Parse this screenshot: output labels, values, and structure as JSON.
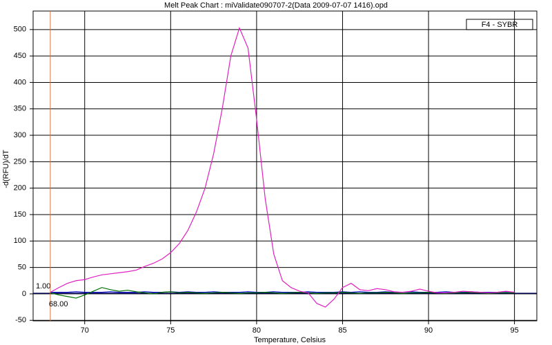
{
  "chart_data": {
    "type": "line",
    "title": "Melt Peak Chart : miValidate090707-2(Data 2009-07-07 1416).opd",
    "xlabel": "Temperature, Celsius",
    "ylabel": "-d(RFU)/dT",
    "x": [
      68,
      68.5,
      69,
      69.5,
      70,
      70.5,
      71,
      71.5,
      72,
      72.5,
      73,
      73.5,
      74,
      74.5,
      75,
      75.5,
      76,
      76.5,
      77,
      77.5,
      78,
      78.5,
      79,
      79.5,
      80,
      80.5,
      81,
      81.5,
      82,
      82.5,
      83,
      83.5,
      84,
      84.5,
      85,
      85.5,
      86,
      86.5,
      87,
      87.5,
      88,
      88.5,
      89,
      89.5,
      90,
      90.5,
      91,
      91.5,
      92,
      92.5,
      93,
      93.5,
      94,
      94.5,
      95
    ],
    "series": [
      {
        "name": "F4 - SYBR",
        "color": "#e020c0",
        "values": [
          3,
          12,
          20,
          25,
          27,
          32,
          36,
          38,
          40,
          42,
          45,
          52,
          58,
          66,
          78,
          95,
          120,
          155,
          200,
          265,
          350,
          450,
          503,
          465,
          330,
          180,
          75,
          25,
          12,
          5,
          2,
          -18,
          -25,
          -10,
          12,
          20,
          8,
          6,
          10,
          8,
          4,
          3,
          5,
          9,
          5,
          2,
          2,
          3,
          5,
          4,
          3,
          2,
          3,
          5,
          3
        ]
      },
      {
        "color": "#007000",
        "values": [
          2,
          -2,
          -5,
          -8,
          -2,
          5,
          12,
          8,
          5,
          7,
          4,
          2,
          0,
          3,
          4,
          2,
          3,
          2,
          1,
          2,
          3,
          2,
          1,
          2,
          2,
          3,
          2,
          1,
          2,
          3,
          2,
          1,
          2,
          2,
          3,
          2,
          1,
          2,
          2,
          3,
          2,
          1,
          2,
          2,
          3,
          2,
          1,
          2,
          2,
          3,
          2,
          1,
          2,
          2,
          2
        ]
      },
      {
        "color": "#0000c0",
        "values": [
          3,
          3,
          3,
          4,
          3,
          3,
          3,
          4,
          3,
          3,
          3,
          4,
          3,
          3,
          4,
          3,
          4,
          3,
          3,
          4,
          3,
          3,
          3,
          4,
          3,
          3,
          4,
          3,
          3,
          3,
          4,
          3,
          3,
          3,
          4,
          3,
          4,
          3,
          3,
          4,
          3,
          3,
          4,
          3,
          3,
          3,
          4,
          3,
          3,
          4,
          3,
          3,
          3,
          4,
          3
        ]
      }
    ],
    "xlim": [
      67,
      96.3
    ],
    "xticks": [
      70,
      75,
      80,
      85,
      90,
      95
    ],
    "ylim": [
      -51,
      535
    ],
    "yticks": [
      -50,
      0,
      50,
      100,
      150,
      200,
      250,
      300,
      350,
      400,
      450,
      500
    ],
    "grid": true,
    "threshold": {
      "value": 1,
      "label": "1.00"
    },
    "marker": {
      "value": 68,
      "label": "68.00"
    }
  }
}
